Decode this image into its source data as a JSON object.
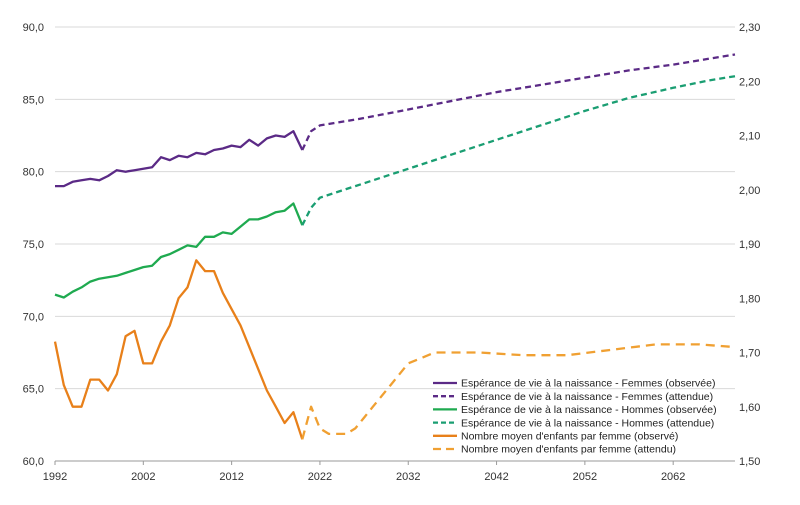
{
  "chart_data": {
    "type": "line",
    "title": "",
    "xlabel": "",
    "ylabel_left": "",
    "ylabel_right": "",
    "xlim": [
      1992,
      2069
    ],
    "xticks": [
      1992,
      2002,
      2012,
      2022,
      2032,
      2042,
      2052,
      2062
    ],
    "ylim_left": [
      60,
      90
    ],
    "yticks_left": [
      "60,0",
      "65,0",
      "70,0",
      "75,0",
      "80,0",
      "85,0",
      "90,0"
    ],
    "ylim_right": [
      1.5,
      2.3
    ],
    "yticks_right": [
      "1,50",
      "1,60",
      "1,70",
      "1,80",
      "1,90",
      "2,00",
      "2,10",
      "2,20",
      "2,30"
    ],
    "grid": true,
    "legend_position": "lower-center",
    "series": [
      {
        "name": "Espérance de vie à la naissance - Femmes (observée)",
        "axis": "left",
        "color": "#5b2a86",
        "dash": "solid",
        "x": [
          1992,
          1993,
          1994,
          1995,
          1996,
          1997,
          1998,
          1999,
          2000,
          2001,
          2002,
          2003,
          2004,
          2005,
          2006,
          2007,
          2008,
          2009,
          2010,
          2011,
          2012,
          2013,
          2014,
          2015,
          2016,
          2017,
          2018,
          2019,
          2020
        ],
        "y": [
          79.0,
          79.0,
          79.3,
          79.4,
          79.5,
          79.4,
          79.7,
          80.1,
          80.0,
          80.1,
          80.2,
          80.3,
          81.0,
          80.8,
          81.1,
          81.0,
          81.3,
          81.2,
          81.5,
          81.6,
          81.8,
          81.7,
          82.2,
          81.8,
          82.3,
          82.5,
          82.4,
          82.8,
          81.5
        ]
      },
      {
        "name": "Espérance de vie à la naissance - Femmes (attendue)",
        "axis": "left",
        "color": "#5b2a86",
        "dash": "dashed",
        "x": [
          2020,
          2021,
          2022,
          2026,
          2032,
          2037,
          2042,
          2047,
          2052,
          2057,
          2062,
          2066,
          2069
        ],
        "y": [
          81.5,
          82.8,
          83.2,
          83.6,
          84.3,
          84.9,
          85.5,
          86.0,
          86.5,
          87.0,
          87.4,
          87.8,
          88.1
        ]
      },
      {
        "name": "Espérance de vie à la naissance - Hommes (observée)",
        "axis": "left",
        "color": "#1faa50",
        "dash": "solid",
        "x": [
          1992,
          1993,
          1994,
          1995,
          1996,
          1997,
          1998,
          1999,
          2000,
          2001,
          2002,
          2003,
          2004,
          2005,
          2006,
          2007,
          2008,
          2009,
          2010,
          2011,
          2012,
          2013,
          2014,
          2015,
          2016,
          2017,
          2018,
          2019,
          2020
        ],
        "y": [
          71.5,
          71.3,
          71.7,
          72.0,
          72.4,
          72.6,
          72.7,
          72.8,
          73.0,
          73.2,
          73.4,
          73.5,
          74.1,
          74.3,
          74.6,
          74.9,
          74.8,
          75.5,
          75.5,
          75.8,
          75.7,
          76.2,
          76.7,
          76.7,
          76.9,
          77.2,
          77.3,
          77.8,
          76.3
        ]
      },
      {
        "name": "Espérance de vie à la naissance - Hommes (attendue)",
        "axis": "left",
        "color": "#1a9e72",
        "dash": "dashed",
        "x": [
          2020,
          2021,
          2022,
          2026,
          2032,
          2037,
          2042,
          2047,
          2052,
          2057,
          2062,
          2066,
          2069
        ],
        "y": [
          76.3,
          77.5,
          78.2,
          79.0,
          80.2,
          81.2,
          82.2,
          83.2,
          84.2,
          85.1,
          85.8,
          86.3,
          86.6
        ]
      },
      {
        "name": "Nombre moyen d'enfants par femme (observé)",
        "axis": "right",
        "color": "#e8801a",
        "dash": "solid",
        "x": [
          1992,
          1993,
          1994,
          1995,
          1996,
          1997,
          1998,
          1999,
          2000,
          2001,
          2002,
          2003,
          2004,
          2005,
          2006,
          2007,
          2008,
          2009,
          2010,
          2011,
          2012,
          2013,
          2014,
          2015,
          2016,
          2017,
          2018,
          2019,
          2020
        ],
        "y": [
          1.72,
          1.64,
          1.6,
          1.6,
          1.65,
          1.65,
          1.63,
          1.66,
          1.73,
          1.74,
          1.68,
          1.68,
          1.72,
          1.75,
          1.8,
          1.82,
          1.87,
          1.85,
          1.85,
          1.81,
          1.78,
          1.75,
          1.71,
          1.67,
          1.63,
          1.6,
          1.57,
          1.59,
          1.54
        ]
      },
      {
        "name": "Nombre moyen d'enfants par femme (attendu)",
        "axis": "right",
        "color": "#f0a032",
        "dash": "dashed",
        "x": [
          2020,
          2021,
          2022,
          2023,
          2024,
          2025,
          2026,
          2027,
          2028,
          2030,
          2032,
          2035,
          2040,
          2045,
          2050,
          2055,
          2060,
          2065,
          2069
        ],
        "y": [
          1.54,
          1.6,
          1.56,
          1.55,
          1.55,
          1.55,
          1.56,
          1.58,
          1.6,
          1.64,
          1.68,
          1.7,
          1.7,
          1.695,
          1.695,
          1.705,
          1.715,
          1.715,
          1.71
        ]
      }
    ]
  }
}
